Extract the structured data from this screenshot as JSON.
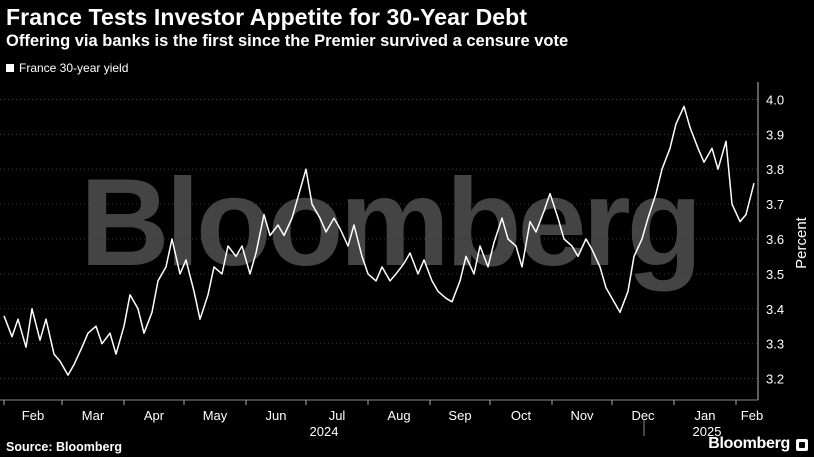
{
  "title": "France Tests Investor Appetite for 30-Year Debt",
  "subtitle": "Offering via banks is the first since the Premier survived a censure vote",
  "legend": {
    "label": "France 30-year yield"
  },
  "watermark": "Bloomberg",
  "source": "Source: Bloomberg",
  "brand": "Bloomberg",
  "colors": {
    "background": "#000000",
    "line": "#ffffff",
    "grid": "#3a3a3a"
  },
  "chart_data": {
    "type": "line",
    "title": "France Tests Investor Appetite for 30-Year Debt",
    "subtitle": "Offering via banks is the first since the Premier survived a censure vote",
    "ylabel": "Percent",
    "ylim": [
      3.15,
      4.05
    ],
    "yticks": [
      3.2,
      3.3,
      3.4,
      3.5,
      3.6,
      3.7,
      3.8,
      3.9,
      4.0
    ],
    "y_axis_position": "right",
    "grid": "horizontal dotted",
    "legend_position": "top-left",
    "xlim": [
      "2024-02-01",
      "2025-02-12"
    ],
    "month_ticks": [
      {
        "label": "Feb",
        "date": "2024-02-01"
      },
      {
        "label": "Mar",
        "date": "2024-03-01"
      },
      {
        "label": "Apr",
        "date": "2024-04-01"
      },
      {
        "label": "May",
        "date": "2024-05-01"
      },
      {
        "label": "Jun",
        "date": "2024-06-01"
      },
      {
        "label": "Jul",
        "date": "2024-07-01"
      },
      {
        "label": "Aug",
        "date": "2024-08-01"
      },
      {
        "label": "Sep",
        "date": "2024-09-01"
      },
      {
        "label": "Oct",
        "date": "2024-10-01"
      },
      {
        "label": "Nov",
        "date": "2024-11-01"
      },
      {
        "label": "Dec",
        "date": "2024-12-01"
      },
      {
        "label": "Jan",
        "date": "2025-01-01"
      },
      {
        "label": "Feb",
        "date": "2025-02-01"
      }
    ],
    "year_labels": [
      {
        "label": "2024",
        "date": "2024-07-01"
      },
      {
        "label": "2025",
        "date": "2025-01-01"
      }
    ],
    "series": [
      {
        "name": "France 30-year yield",
        "points": [
          [
            "2024-02-01",
            3.38
          ],
          [
            "2024-02-05",
            3.32
          ],
          [
            "2024-02-08",
            3.37
          ],
          [
            "2024-02-12",
            3.29
          ],
          [
            "2024-02-15",
            3.4
          ],
          [
            "2024-02-19",
            3.31
          ],
          [
            "2024-02-22",
            3.37
          ],
          [
            "2024-02-26",
            3.27
          ],
          [
            "2024-02-29",
            3.25
          ],
          [
            "2024-03-04",
            3.21
          ],
          [
            "2024-03-07",
            3.24
          ],
          [
            "2024-03-11",
            3.29
          ],
          [
            "2024-03-14",
            3.33
          ],
          [
            "2024-03-18",
            3.35
          ],
          [
            "2024-03-21",
            3.3
          ],
          [
            "2024-03-25",
            3.33
          ],
          [
            "2024-03-28",
            3.27
          ],
          [
            "2024-04-01",
            3.35
          ],
          [
            "2024-04-04",
            3.44
          ],
          [
            "2024-04-08",
            3.4
          ],
          [
            "2024-04-11",
            3.33
          ],
          [
            "2024-04-15",
            3.39
          ],
          [
            "2024-04-18",
            3.48
          ],
          [
            "2024-04-22",
            3.52
          ],
          [
            "2024-04-25",
            3.6
          ],
          [
            "2024-04-29",
            3.5
          ],
          [
            "2024-05-02",
            3.54
          ],
          [
            "2024-05-06",
            3.45
          ],
          [
            "2024-05-09",
            3.37
          ],
          [
            "2024-05-13",
            3.44
          ],
          [
            "2024-05-16",
            3.52
          ],
          [
            "2024-05-20",
            3.5
          ],
          [
            "2024-05-23",
            3.58
          ],
          [
            "2024-05-27",
            3.55
          ],
          [
            "2024-05-30",
            3.58
          ],
          [
            "2024-06-03",
            3.5
          ],
          [
            "2024-06-06",
            3.56
          ],
          [
            "2024-06-10",
            3.67
          ],
          [
            "2024-06-13",
            3.61
          ],
          [
            "2024-06-17",
            3.64
          ],
          [
            "2024-06-20",
            3.61
          ],
          [
            "2024-06-24",
            3.66
          ],
          [
            "2024-06-27",
            3.72
          ],
          [
            "2024-07-01",
            3.8
          ],
          [
            "2024-07-04",
            3.7
          ],
          [
            "2024-07-08",
            3.66
          ],
          [
            "2024-07-11",
            3.62
          ],
          [
            "2024-07-15",
            3.66
          ],
          [
            "2024-07-18",
            3.63
          ],
          [
            "2024-07-22",
            3.58
          ],
          [
            "2024-07-25",
            3.64
          ],
          [
            "2024-07-29",
            3.55
          ],
          [
            "2024-08-01",
            3.5
          ],
          [
            "2024-08-05",
            3.48
          ],
          [
            "2024-08-08",
            3.52
          ],
          [
            "2024-08-12",
            3.48
          ],
          [
            "2024-08-15",
            3.5
          ],
          [
            "2024-08-19",
            3.53
          ],
          [
            "2024-08-22",
            3.56
          ],
          [
            "2024-08-26",
            3.5
          ],
          [
            "2024-08-29",
            3.54
          ],
          [
            "2024-09-02",
            3.48
          ],
          [
            "2024-09-05",
            3.45
          ],
          [
            "2024-09-09",
            3.43
          ],
          [
            "2024-09-12",
            3.42
          ],
          [
            "2024-09-16",
            3.48
          ],
          [
            "2024-09-19",
            3.55
          ],
          [
            "2024-09-23",
            3.5
          ],
          [
            "2024-09-26",
            3.58
          ],
          [
            "2024-09-30",
            3.52
          ],
          [
            "2024-10-03",
            3.59
          ],
          [
            "2024-10-07",
            3.66
          ],
          [
            "2024-10-10",
            3.6
          ],
          [
            "2024-10-14",
            3.58
          ],
          [
            "2024-10-17",
            3.52
          ],
          [
            "2024-10-21",
            3.65
          ],
          [
            "2024-10-24",
            3.62
          ],
          [
            "2024-10-28",
            3.68
          ],
          [
            "2024-10-31",
            3.73
          ],
          [
            "2024-11-04",
            3.66
          ],
          [
            "2024-11-07",
            3.6
          ],
          [
            "2024-11-11",
            3.58
          ],
          [
            "2024-11-14",
            3.55
          ],
          [
            "2024-11-18",
            3.6
          ],
          [
            "2024-11-21",
            3.57
          ],
          [
            "2024-11-25",
            3.52
          ],
          [
            "2024-11-28",
            3.46
          ],
          [
            "2024-12-02",
            3.42
          ],
          [
            "2024-12-05",
            3.39
          ],
          [
            "2024-12-09",
            3.45
          ],
          [
            "2024-12-12",
            3.55
          ],
          [
            "2024-12-16",
            3.6
          ],
          [
            "2024-12-19",
            3.66
          ],
          [
            "2024-12-23",
            3.73
          ],
          [
            "2024-12-26",
            3.8
          ],
          [
            "2024-12-30",
            3.86
          ],
          [
            "2025-01-02",
            3.93
          ],
          [
            "2025-01-06",
            3.98
          ],
          [
            "2025-01-09",
            3.92
          ],
          [
            "2025-01-13",
            3.86
          ],
          [
            "2025-01-16",
            3.82
          ],
          [
            "2025-01-20",
            3.86
          ],
          [
            "2025-01-23",
            3.8
          ],
          [
            "2025-01-27",
            3.88
          ],
          [
            "2025-01-30",
            3.7
          ],
          [
            "2025-02-03",
            3.65
          ],
          [
            "2025-02-06",
            3.67
          ],
          [
            "2025-02-10",
            3.76
          ]
        ]
      }
    ]
  }
}
